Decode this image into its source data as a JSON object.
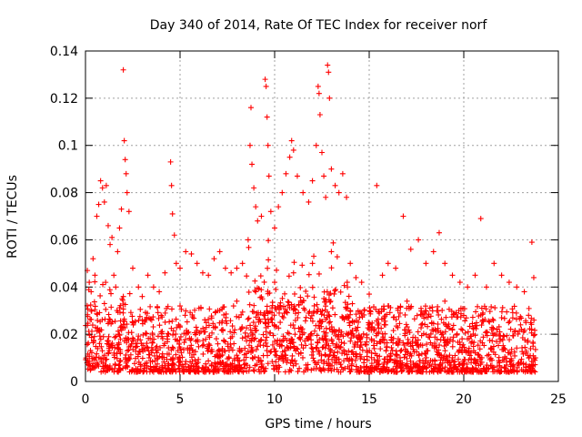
{
  "chart_data": {
    "type": "scatter",
    "title": "Day 340 of 2014, Rate Of TEC Index for receiver norf",
    "xlabel": "GPS time / hours",
    "ylabel": "ROTI / TECUs",
    "xlim": [
      0,
      25
    ],
    "ylim": [
      0,
      0.14
    ],
    "xticks": [
      0,
      5,
      10,
      15,
      20,
      25
    ],
    "xtick_labels": [
      "0",
      "5",
      "10",
      "15",
      "20",
      "25"
    ],
    "yticks": [
      0,
      0.02,
      0.04,
      0.06,
      0.08,
      0.1,
      0.12,
      0.14
    ],
    "ytick_labels": [
      "0",
      "0.02",
      "0.04",
      "0.06",
      "0.08",
      "0.1",
      "0.12",
      "0.14"
    ],
    "grid": true,
    "marker": "+",
    "color": "#ff0000",
    "series": [
      {
        "name": "ROTI",
        "points": [
          [
            0.1,
            0.047
          ],
          [
            0.2,
            0.042
          ],
          [
            0.3,
            0.038
          ],
          [
            0.4,
            0.052
          ],
          [
            0.5,
            0.045
          ],
          [
            0.6,
            0.07
          ],
          [
            0.7,
            0.075
          ],
          [
            0.8,
            0.085
          ],
          [
            0.9,
            0.082
          ],
          [
            1.0,
            0.076
          ],
          [
            1.1,
            0.083
          ],
          [
            1.2,
            0.066
          ],
          [
            1.3,
            0.058
          ],
          [
            1.4,
            0.061
          ],
          [
            1.5,
            0.045
          ],
          [
            1.6,
            0.04
          ],
          [
            1.7,
            0.055
          ],
          [
            1.8,
            0.065
          ],
          [
            1.9,
            0.073
          ],
          [
            2.0,
            0.132
          ],
          [
            2.05,
            0.102
          ],
          [
            2.1,
            0.094
          ],
          [
            2.15,
            0.088
          ],
          [
            2.2,
            0.08
          ],
          [
            2.3,
            0.072
          ],
          [
            2.5,
            0.048
          ],
          [
            2.8,
            0.04
          ],
          [
            3.0,
            0.036
          ],
          [
            3.3,
            0.045
          ],
          [
            3.6,
            0.04
          ],
          [
            3.9,
            0.038
          ],
          [
            4.2,
            0.046
          ],
          [
            4.5,
            0.093
          ],
          [
            4.55,
            0.083
          ],
          [
            4.6,
            0.071
          ],
          [
            4.7,
            0.062
          ],
          [
            4.8,
            0.05
          ],
          [
            5.0,
            0.048
          ],
          [
            5.3,
            0.055
          ],
          [
            5.6,
            0.054
          ],
          [
            5.9,
            0.05
          ],
          [
            6.2,
            0.046
          ],
          [
            6.5,
            0.045
          ],
          [
            6.8,
            0.052
          ],
          [
            7.1,
            0.055
          ],
          [
            7.4,
            0.048
          ],
          [
            7.7,
            0.046
          ],
          [
            8.0,
            0.048
          ],
          [
            8.3,
            0.05
          ],
          [
            8.6,
            0.06
          ],
          [
            8.7,
            0.1
          ],
          [
            8.75,
            0.116
          ],
          [
            8.8,
            0.092
          ],
          [
            8.9,
            0.082
          ],
          [
            9.0,
            0.074
          ],
          [
            9.1,
            0.068
          ],
          [
            9.3,
            0.07
          ],
          [
            9.5,
            0.128
          ],
          [
            9.55,
            0.125
          ],
          [
            9.6,
            0.112
          ],
          [
            9.65,
            0.1
          ],
          [
            9.7,
            0.087
          ],
          [
            9.8,
            0.072
          ],
          [
            10.0,
            0.065
          ],
          [
            10.2,
            0.074
          ],
          [
            10.4,
            0.08
          ],
          [
            10.6,
            0.088
          ],
          [
            10.8,
            0.095
          ],
          [
            10.9,
            0.102
          ],
          [
            11.0,
            0.098
          ],
          [
            11.2,
            0.087
          ],
          [
            11.5,
            0.08
          ],
          [
            11.8,
            0.076
          ],
          [
            12.0,
            0.085
          ],
          [
            12.2,
            0.1
          ],
          [
            12.3,
            0.125
          ],
          [
            12.35,
            0.122
          ],
          [
            12.4,
            0.113
          ],
          [
            12.5,
            0.097
          ],
          [
            12.6,
            0.087
          ],
          [
            12.7,
            0.078
          ],
          [
            12.8,
            0.134
          ],
          [
            12.85,
            0.131
          ],
          [
            12.9,
            0.12
          ],
          [
            13.0,
            0.09
          ],
          [
            13.2,
            0.083
          ],
          [
            13.4,
            0.08
          ],
          [
            13.6,
            0.088
          ],
          [
            13.8,
            0.078
          ],
          [
            14.0,
            0.05
          ],
          [
            14.3,
            0.044
          ],
          [
            14.6,
            0.042
          ],
          [
            15.0,
            0.037
          ],
          [
            15.4,
            0.083
          ],
          [
            15.7,
            0.045
          ],
          [
            16.0,
            0.05
          ],
          [
            16.4,
            0.048
          ],
          [
            16.8,
            0.07
          ],
          [
            17.2,
            0.056
          ],
          [
            17.6,
            0.06
          ],
          [
            18.0,
            0.05
          ],
          [
            18.4,
            0.055
          ],
          [
            18.7,
            0.063
          ],
          [
            19.0,
            0.05
          ],
          [
            19.4,
            0.045
          ],
          [
            19.8,
            0.042
          ],
          [
            20.2,
            0.04
          ],
          [
            20.6,
            0.045
          ],
          [
            20.9,
            0.069
          ],
          [
            21.2,
            0.04
          ],
          [
            21.6,
            0.05
          ],
          [
            22.0,
            0.045
          ],
          [
            22.4,
            0.042
          ],
          [
            22.8,
            0.04
          ],
          [
            23.2,
            0.038
          ],
          [
            23.6,
            0.059
          ],
          [
            23.7,
            0.044
          ],
          [
            0.3,
            0.03
          ],
          [
            1.0,
            0.033
          ],
          [
            2.0,
            0.036
          ],
          [
            3.0,
            0.026
          ],
          [
            4.0,
            0.028
          ],
          [
            5.0,
            0.032
          ],
          [
            6.0,
            0.031
          ],
          [
            7.0,
            0.03
          ],
          [
            8.0,
            0.034
          ],
          [
            9.0,
            0.038
          ],
          [
            10.0,
            0.042
          ],
          [
            11.0,
            0.046
          ],
          [
            12.0,
            0.05
          ],
          [
            13.0,
            0.055
          ],
          [
            14.0,
            0.03
          ],
          [
            15.0,
            0.022
          ],
          [
            16.0,
            0.032
          ],
          [
            17.0,
            0.034
          ],
          [
            18.0,
            0.03
          ],
          [
            19.0,
            0.034
          ],
          [
            20.0,
            0.028
          ],
          [
            21.0,
            0.026
          ],
          [
            22.0,
            0.027
          ],
          [
            23.0,
            0.024
          ]
        ]
      }
    ],
    "background_density": "dense red cluster between 0.005 and ~0.03 across 0–24 h, higher (up to ~0.06) around 9–14 h"
  }
}
